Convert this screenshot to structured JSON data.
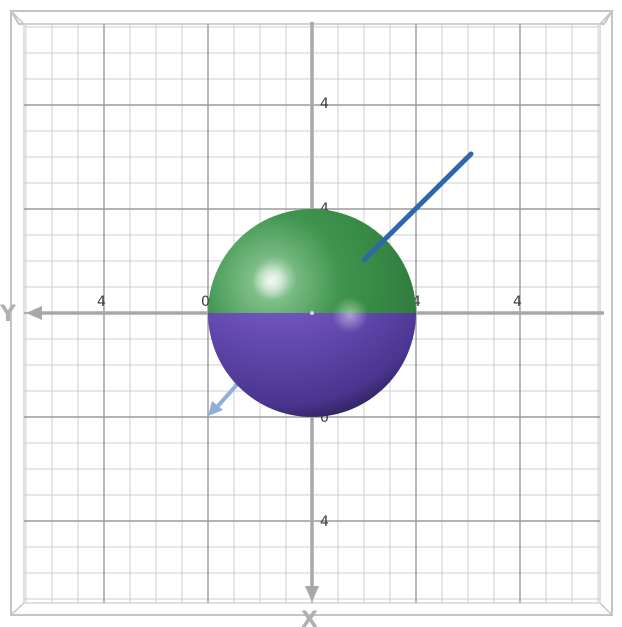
{
  "scene": {
    "view": "3D graph view looking down the z-axis",
    "grid": true,
    "colors": {
      "background": "#ffffff",
      "grid_major": "#9a9a9a",
      "grid_minor": "#cfcfcf",
      "axis": "#a8a8a8",
      "frame": "#c4c4c4",
      "sphere_top": "#3d8f4b",
      "sphere_bottom": "#6a4fb6",
      "line_dark": "#2f67a8",
      "line_light": "#8fb0d6"
    },
    "axes": {
      "y_axis_letter": "Y",
      "x_axis_letter": "X"
    },
    "tick_labels": {
      "left_outer": "4",
      "left_inner": "0",
      "right_inner": "4",
      "right_outer": "4",
      "top_outer": "4",
      "top_inner": "4",
      "bottom_inner": "0",
      "bottom_outer": "4"
    },
    "objects": [
      {
        "name": "sphere",
        "shape": "sphere",
        "top_color": "sphere_top",
        "bottom_color": "sphere_bottom"
      },
      {
        "name": "line-segment-dark",
        "shape": "line",
        "color": "line_dark"
      },
      {
        "name": "arrow-light",
        "shape": "arrow",
        "color": "line_light"
      }
    ]
  }
}
